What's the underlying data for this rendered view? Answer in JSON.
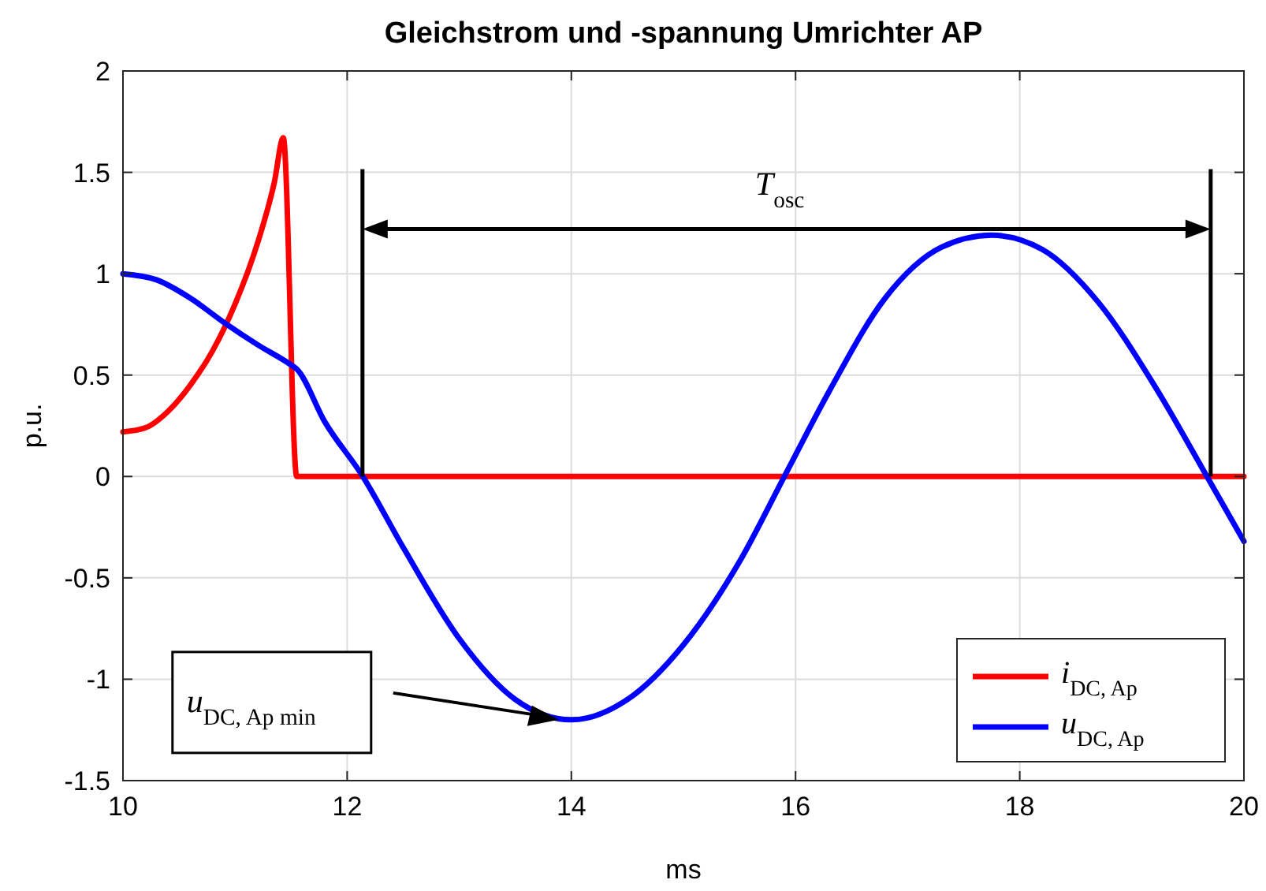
{
  "chart_data": {
    "type": "line",
    "title": "Gleichstrom und -spannung Umrichter AP",
    "xlabel": "ms",
    "ylabel": "p.u.",
    "xlim": [
      10,
      20
    ],
    "xticks": [
      10,
      12,
      14,
      16,
      18,
      20
    ],
    "ylim": [
      -1.5,
      2
    ],
    "yticks": [
      -1.5,
      -1,
      -0.5,
      0,
      0.5,
      1,
      1.5,
      2
    ],
    "grid": true,
    "legend": "bottom right",
    "line_style": "solid",
    "marker": "none",
    "series": [
      {
        "name": "i$_{DC, Ap}$",
        "color": "#ff0000",
        "x": [
          10,
          10.2,
          10.4,
          10.6,
          10.8,
          11.0,
          11.2,
          11.35,
          11.43,
          11.55,
          20
        ],
        "values": [
          0.22,
          0.24,
          0.32,
          0.45,
          0.62,
          0.85,
          1.15,
          1.45,
          1.67,
          0,
          0
        ]
      },
      {
        "name": "u$_{DC, Ap}$",
        "color": "#0000ff",
        "x": [
          10,
          10.3,
          10.6,
          10.9,
          11.2,
          11.5,
          11.55,
          11.8,
          12.14,
          12.5,
          13,
          13.5,
          14,
          14.5,
          15,
          15.5,
          15.9,
          16.3,
          16.8,
          17.3,
          17.75,
          18.2,
          18.7,
          19.2,
          19.67,
          20
        ],
        "values": [
          1.0,
          0.97,
          0.88,
          0.76,
          0.65,
          0.55,
          0.53,
          0.27,
          0,
          -0.35,
          -0.8,
          -1.1,
          -1.2,
          -1.1,
          -0.83,
          -0.42,
          0,
          0.42,
          0.88,
          1.13,
          1.19,
          1.12,
          0.86,
          0.45,
          0,
          -0.32
        ]
      }
    ],
    "annotations": [
      "T$_{osc}$",
      "u$_{DC, Ap min}$"
    ]
  }
}
